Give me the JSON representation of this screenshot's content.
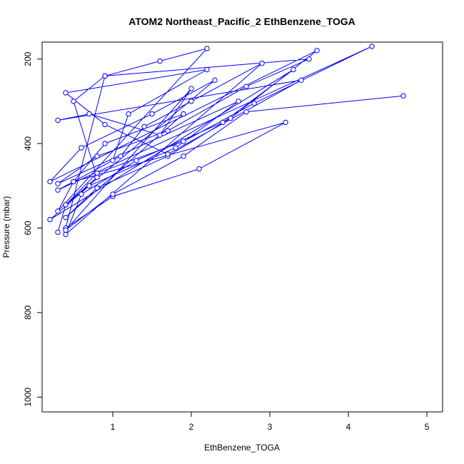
{
  "chart_data": {
    "type": "line",
    "title": "ATOM2 Northeast_Pacific_2 EthBenzene_TOGA",
    "xlabel": "EthBenzene_TOGA",
    "ylabel": "Pressure (mbar)",
    "xlim": [
      0.1,
      5.2
    ],
    "ylim": [
      1035,
      160
    ],
    "y_reversed": true,
    "grid": false,
    "x_ticks": [
      1,
      2,
      3,
      4,
      5
    ],
    "x_tick_labels": [
      "1",
      "2",
      "3",
      "4",
      "5"
    ],
    "y_ticks": [
      200,
      400,
      600,
      800,
      1000
    ],
    "y_tick_labels": [
      "200",
      "400",
      "600",
      "800",
      "1000"
    ],
    "series_color": "#0000ff",
    "marker": "open-circle",
    "series": [
      {
        "x": [
          0.3,
          0.4,
          0.8,
          0.5,
          0.9,
          1.6,
          2.2,
          0.3,
          0.5,
          1.1,
          1.4,
          2.0,
          2.9,
          0.4,
          0.6,
          1.3,
          2.4,
          3.3,
          0.2,
          0.7,
          1.8,
          2.6,
          0.3,
          0.8,
          1.7,
          2.7,
          3.5,
          0.9,
          0.4,
          1.0,
          2.1,
          3.2,
          0.5,
          0.9,
          1.9,
          0.4,
          0.8,
          1.7,
          2.5,
          3.6,
          0.2,
          0.6,
          1.5,
          2.3,
          0.4,
          0.8,
          1.9,
          2.8,
          4.3,
          0.3,
          1.0,
          1.2,
          2.2,
          0.4,
          0.9,
          1.7,
          3.4,
          0.3,
          0.7,
          1.6,
          2.0,
          0.4,
          1.0,
          1.9,
          2.7,
          4.7
        ],
        "y": [
          610,
          545,
          480,
          300,
          240,
          205,
          175,
          560,
          490,
          430,
          360,
          300,
          210,
          615,
          520,
          440,
          350,
          225,
          580,
          500,
          410,
          300,
          495,
          430,
          370,
          265,
          200,
          240,
          600,
          525,
          460,
          350,
          490,
          400,
          330,
          575,
          505,
          430,
          340,
          180,
          490,
          410,
          330,
          250,
          545,
          470,
          395,
          305,
          170,
          510,
          440,
          330,
          225,
          280,
          355,
          425,
          250,
          345,
          330,
          380,
          270,
          605,
          520,
          430,
          325,
          287
        ]
      }
    ]
  }
}
